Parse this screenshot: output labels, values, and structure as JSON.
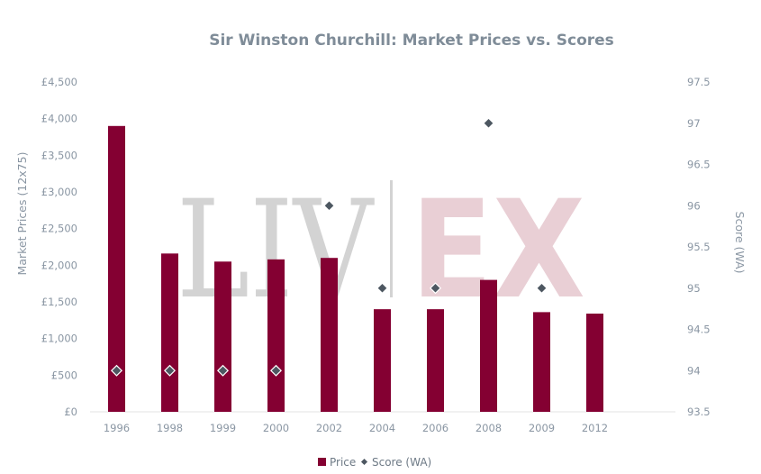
{
  "chart_data": {
    "type": "bar",
    "title": "Sir Winston Churchill: Market Prices vs. Scores",
    "categories": [
      "1996",
      "1998",
      "1999",
      "2000",
      "2002",
      "2004",
      "2006",
      "2008",
      "2009",
      "2012"
    ],
    "series": [
      {
        "name": "Price",
        "type": "bar",
        "axis": "left",
        "color": "#840032",
        "values": [
          3900,
          2160,
          2050,
          2080,
          2100,
          1400,
          1400,
          1800,
          1360,
          1340
        ]
      },
      {
        "name": "Score (WA)",
        "type": "scatter",
        "axis": "right",
        "color": "#4d5761",
        "values": [
          94,
          94,
          94,
          94,
          96,
          95,
          95,
          97,
          95,
          null
        ]
      }
    ],
    "y_left": {
      "label": "Market Prices (12x75)",
      "min": 0,
      "max": 4500,
      "step": 500,
      "ticks": [
        "£0",
        "£500",
        "£1,000",
        "£1,500",
        "£2,000",
        "£2,500",
        "£3,000",
        "£3,500",
        "£4,000",
        "£4,500"
      ]
    },
    "y_right": {
      "label": "Score (WA)",
      "min": 93.5,
      "max": 97.5,
      "step": 0.5,
      "ticks": [
        "93.5",
        "94",
        "94.5",
        "95",
        "95.5",
        "96",
        "96.5",
        "97",
        "97.5"
      ]
    },
    "legend": {
      "position": "bottom",
      "items": [
        "Price",
        "Score (WA)"
      ]
    },
    "grid": false,
    "watermark": {
      "left": "LIV",
      "right": "EX"
    }
  }
}
